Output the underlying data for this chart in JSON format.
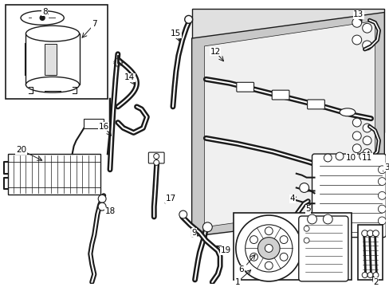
{
  "bg_color": "#ffffff",
  "line_color": "#1a1a1a",
  "shaded_color": "#c8c8c8",
  "fig_width": 4.89,
  "fig_height": 3.6,
  "dpi": 100
}
